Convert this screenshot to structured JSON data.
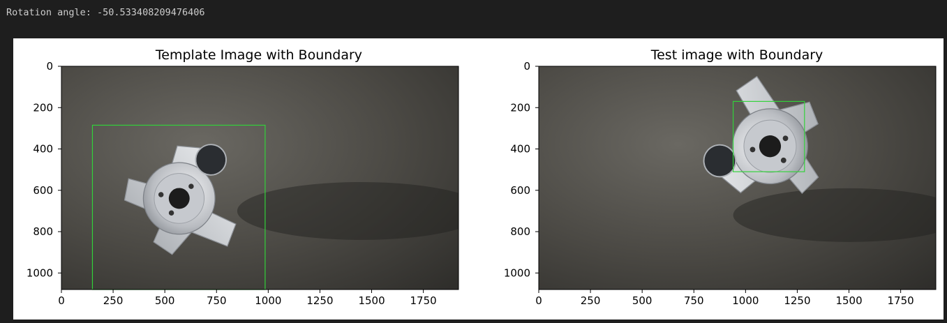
{
  "output": {
    "text": "Rotation angle: -50.533408209476406"
  },
  "colors": {
    "page_bg": "#1e1e1e",
    "figure_bg": "#ffffff",
    "boundary": "#32d23a",
    "part": "#d3d6d9",
    "background_surface": "#4a4843"
  },
  "chart_data": [
    {
      "type": "image",
      "title": "Template Image with Boundary",
      "xlim": [
        0,
        1920
      ],
      "ylim": [
        1080,
        0
      ],
      "xticks": [
        "0",
        "250",
        "500",
        "750",
        "1000",
        "1250",
        "1500",
        "1750"
      ],
      "yticks": [
        "0",
        "200",
        "400",
        "600",
        "800",
        "1000"
      ],
      "boundary_box": {
        "x0": 150,
        "y0": 285,
        "x1": 985,
        "y1": 1080
      },
      "grid": false
    },
    {
      "type": "image",
      "title": "Test image with Boundary",
      "xlim": [
        0,
        1920
      ],
      "ylim": [
        1080,
        0
      ],
      "xticks": [
        "0",
        "250",
        "500",
        "750",
        "1000",
        "1250",
        "1500",
        "1750"
      ],
      "yticks": [
        "0",
        "200",
        "400",
        "600",
        "800",
        "1000"
      ],
      "boundary_box": {
        "x0": 940,
        "y0": 170,
        "x1": 1285,
        "y1": 510
      },
      "grid": false
    }
  ]
}
